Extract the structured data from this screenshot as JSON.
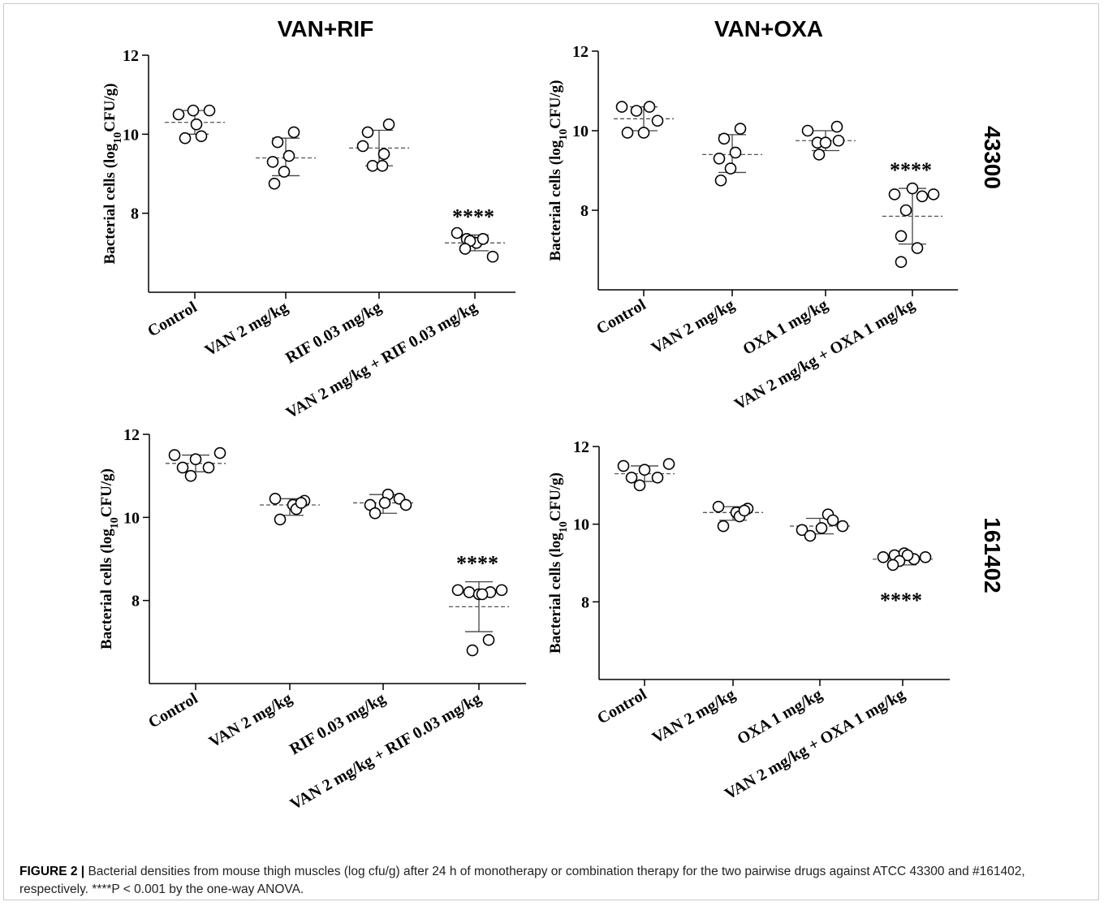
{
  "column_titles": [
    "VAN+RIF",
    "VAN+OXA"
  ],
  "row_labels": [
    "43300",
    "161402"
  ],
  "caption": {
    "label": "FIGURE 2 |",
    "text": " Bacterial densities from mouse thigh muscles (log cfu/g) after 24 h of monotherapy or combination therapy for the two pairwise drugs against ATCC 43300 and #161402, respectively. ****P < 0.001 by the one-way ANOVA."
  },
  "chart_data": [
    {
      "type": "scatter",
      "panel": "top-left",
      "title": "VAN+RIF",
      "ylabel": "Bacterial cells (log10CFU/g)",
      "ylim": [
        6,
        12
      ],
      "yticks": [
        8,
        10,
        12
      ],
      "categories": [
        "Control",
        "VAN 2 mg/kg",
        "RIF 0.03 mg/kg",
        "VAN 2 mg/kg + RIF 0.03 mg/kg"
      ],
      "points": [
        [
          10.5,
          10.6,
          10.6,
          10.25,
          9.9,
          9.95
        ],
        [
          9.8,
          10.05,
          9.3,
          9.45,
          9.05,
          8.75
        ],
        [
          10.05,
          10.25,
          9.7,
          9.5,
          9.2,
          9.2
        ],
        [
          7.5,
          7.35,
          7.25,
          7.3,
          7.35,
          7.1,
          6.9
        ]
      ],
      "mean": [
        10.3,
        9.4,
        9.65,
        7.25
      ],
      "sd_upper": [
        10.6,
        9.9,
        10.1,
        7.45
      ],
      "sd_lower": [
        10.0,
        8.95,
        9.2,
        7.05
      ],
      "annotations": [
        {
          "category_index": 3,
          "text": "****",
          "position": "above"
        }
      ]
    },
    {
      "type": "scatter",
      "panel": "top-right",
      "title": "VAN+OXA",
      "ylabel": "Bacterial cells (log10CFU/g)",
      "ylim": [
        6,
        12
      ],
      "yticks": [
        8,
        10,
        12
      ],
      "categories": [
        "Control",
        "VAN 2 mg/kg",
        "OXA 1 mg/kg",
        "VAN 2 mg/kg + OXA 1 mg/kg"
      ],
      "points": [
        [
          10.6,
          10.5,
          10.6,
          10.25,
          9.95,
          9.95
        ],
        [
          9.8,
          10.05,
          9.3,
          9.45,
          9.05,
          8.75
        ],
        [
          10.0,
          10.1,
          9.7,
          9.75,
          9.7,
          9.4
        ],
        [
          8.4,
          8.55,
          8.35,
          8.4,
          8.0,
          7.35,
          7.05,
          6.7
        ]
      ],
      "mean": [
        10.3,
        9.4,
        9.75,
        7.85
      ],
      "sd_upper": [
        10.6,
        9.9,
        10.0,
        8.55
      ],
      "sd_lower": [
        10.0,
        8.95,
        9.5,
        7.15
      ],
      "annotations": [
        {
          "category_index": 3,
          "text": "****",
          "position": "above"
        }
      ]
    },
    {
      "type": "scatter",
      "panel": "bottom-left",
      "title": "",
      "ylabel": "Bacterial cells (log10CFU/g)",
      "ylim": [
        6,
        12
      ],
      "yticks": [
        8,
        10,
        12
      ],
      "categories": [
        "Control",
        "VAN 2 mg/kg",
        "RIF 0.03 mg/kg",
        "VAN 2 mg/kg + RIF 0.03 mg/kg"
      ],
      "points": [
        [
          11.5,
          11.2,
          11.4,
          11.2,
          11.0,
          11.55
        ],
        [
          10.45,
          10.3,
          10.4,
          10.2,
          9.95,
          10.35
        ],
        [
          10.3,
          10.55,
          10.45,
          10.3,
          10.1,
          10.35
        ],
        [
          8.25,
          8.2,
          8.15,
          8.2,
          8.25,
          8.15,
          7.05,
          6.8
        ]
      ],
      "mean": [
        11.3,
        10.3,
        10.35,
        7.85
      ],
      "sd_upper": [
        11.5,
        10.45,
        10.55,
        8.45
      ],
      "sd_lower": [
        11.1,
        10.05,
        10.1,
        7.25
      ],
      "annotations": [
        {
          "category_index": 3,
          "text": "****",
          "position": "above"
        }
      ]
    },
    {
      "type": "scatter",
      "panel": "bottom-right",
      "title": "",
      "ylabel": "Bacterial cells (log10CFU/g)",
      "ylim": [
        6,
        12
      ],
      "yticks": [
        8,
        10,
        12
      ],
      "categories": [
        "Control",
        "VAN 2 mg/kg",
        "OXA 1 mg/kg",
        "VAN 2 mg/kg + OXA 1 mg/kg"
      ],
      "points": [
        [
          11.5,
          11.2,
          11.4,
          11.2,
          11.0,
          11.55
        ],
        [
          10.45,
          10.3,
          10.4,
          10.2,
          9.95,
          10.35
        ],
        [
          9.85,
          10.25,
          9.9,
          9.7,
          10.1,
          9.95
        ],
        [
          9.15,
          9.2,
          9.25,
          9.1,
          9.15,
          9.2,
          9.05,
          8.95
        ]
      ],
      "mean": [
        11.3,
        10.3,
        9.95,
        9.1
      ],
      "sd_upper": [
        11.5,
        10.45,
        10.15,
        9.2
      ],
      "sd_lower": [
        11.1,
        10.1,
        9.75,
        8.95
      ],
      "annotations": [
        {
          "category_index": 3,
          "text": "****",
          "position": "below"
        }
      ]
    }
  ]
}
